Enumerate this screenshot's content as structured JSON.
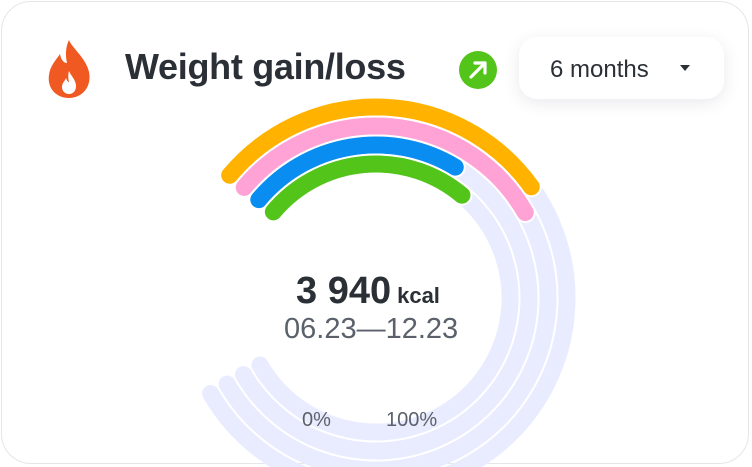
{
  "widget": {
    "title": "Weight gain/loss",
    "icon": "flame-icon",
    "trend_icon": "arrow-up-right-icon",
    "trend_color": "#52c41a",
    "accent_color": "#f05a22"
  },
  "period": {
    "selected": "6 months"
  },
  "summary": {
    "value": "3 940",
    "unit": "kcal",
    "range": "06.23—12.23"
  },
  "scale": {
    "min_label": "0%",
    "max_label": "100%"
  },
  "rings": [
    {
      "color": "#ffb300",
      "fraction": 0.36
    },
    {
      "color": "#ffa3d6",
      "fraction": 0.38
    },
    {
      "color": "#0a8df0",
      "fraction": 0.28
    },
    {
      "color": "#52c41a",
      "fraction": 0.31
    }
  ],
  "track_color": "#e9ecff"
}
